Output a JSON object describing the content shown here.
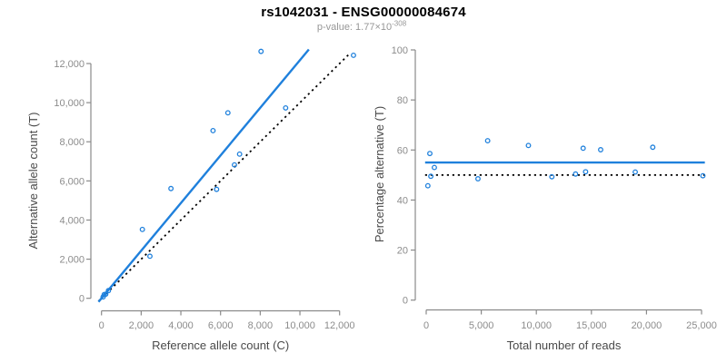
{
  "header": {
    "title": "rs1042031 - ENSG00000084674",
    "pvalue_text": "p-value: 1.77×10",
    "pvalue_exponent": "-308"
  },
  "colors": {
    "blue": "#1F80DC",
    "dotted_black": "#000000",
    "axis_gray": "#8A8A8A",
    "tick_label_gray": "#8C8C8C",
    "axis_title_gray": "#4A4A4A",
    "title_black": "#000000",
    "subtitle_gray": "#979797"
  },
  "chart_data": [
    {
      "type": "scatter",
      "name": "allele-counts",
      "xlabel": "Reference allele count (C)",
      "ylabel": "Alternative allele count (T)",
      "xlim": [
        -500,
        13200
      ],
      "ylim": [
        -530,
        13230
      ],
      "grid": false,
      "xticks": {
        "values": [
          0,
          2000,
          4000,
          6000,
          8000,
          10000,
          12000
        ],
        "labels": [
          "0",
          "2,000",
          "4,000",
          "6,000",
          "8,000",
          "10,000",
          "12,000"
        ]
      },
      "yticks": {
        "values": [
          0,
          2000,
          4000,
          6000,
          8000,
          10000,
          12000
        ],
        "labels": [
          "0",
          "2,000",
          "4,000",
          "6,000",
          "8,000",
          "10,000",
          "12,000"
        ]
      },
      "points": [
        [
          81,
          69
        ],
        [
          137,
          193
        ],
        [
          212,
          208
        ],
        [
          348,
          392
        ],
        [
          2060,
          3520
        ],
        [
          2440,
          2150
        ],
        [
          3500,
          5610
        ],
        [
          5800,
          5570
        ],
        [
          5620,
          8570
        ],
        [
          6370,
          9480
        ],
        [
          6700,
          6820
        ],
        [
          6960,
          7370
        ],
        [
          8040,
          12620
        ],
        [
          9280,
          9730
        ],
        [
          12700,
          12420
        ]
      ],
      "fit_line": {
        "x1": -150,
        "y1": -183,
        "x2": 10450,
        "y2": 12720,
        "style": "solid-blue"
      },
      "identity_line": {
        "x1": -150,
        "y1": -150,
        "x2": 12520,
        "y2": 12520,
        "style": "dotted-black"
      }
    },
    {
      "type": "scatter",
      "name": "percentage-vs-reads",
      "xlabel": "Total number of reads",
      "ylabel": "Percentage alternative (T)",
      "xlim": [
        -1000,
        26000
      ],
      "ylim": [
        0,
        100
      ],
      "grid": false,
      "xticks": {
        "values": [
          0,
          5000,
          10000,
          15000,
          20000,
          25000
        ],
        "labels": [
          "0",
          "5,000",
          "10,000",
          "15,000",
          "20,000",
          "25,000"
        ]
      },
      "yticks": {
        "values": [
          0,
          20,
          40,
          60,
          80,
          100
        ],
        "labels": [
          "0",
          "20",
          "40",
          "60",
          "80",
          "100"
        ]
      },
      "points": [
        [
          150,
          45.7
        ],
        [
          330,
          58.6
        ],
        [
          420,
          49.5
        ],
        [
          740,
          53.0
        ],
        [
          4700,
          48.5
        ],
        [
          5580,
          63.7
        ],
        [
          9280,
          61.8
        ],
        [
          11410,
          49.3
        ],
        [
          13560,
          50.4
        ],
        [
          14250,
          60.7
        ],
        [
          14470,
          51.3
        ],
        [
          15840,
          60.1
        ],
        [
          18980,
          51.2
        ],
        [
          20570,
          61.1
        ],
        [
          25120,
          49.7
        ]
      ],
      "fit_line": {
        "y": 55,
        "x1": -100,
        "x2": 25300,
        "style": "solid-blue"
      },
      "identity_line": {
        "y": 50,
        "x1": -100,
        "x2": 25400,
        "style": "dotted-black"
      }
    }
  ]
}
